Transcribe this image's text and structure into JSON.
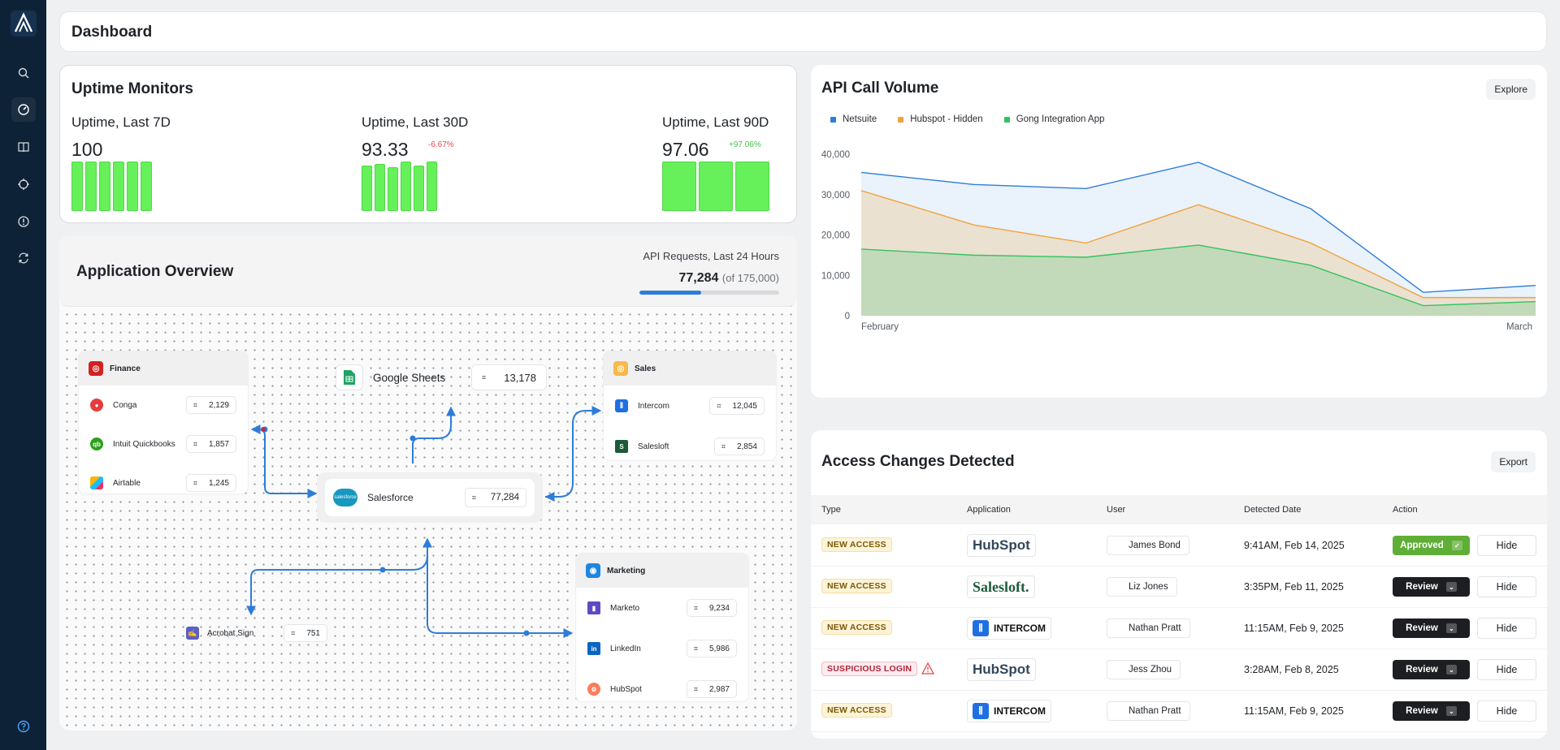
{
  "header": {
    "title": "Dashboard"
  },
  "sidebar": {
    "items": [
      "logo-icon",
      "search-icon",
      "gauge-icon",
      "book-icon",
      "crosshair-icon",
      "alert-icon",
      "sync-icon",
      "help-icon"
    ]
  },
  "uptime": {
    "title": "Uptime Monitors",
    "blocks": [
      {
        "label": "Uptime, Last 7D",
        "value": "100",
        "delta": ""
      },
      {
        "label": "Uptime, Last 30D",
        "value": "93.33",
        "delta": "-6.67%",
        "delta_color": "#e5484d"
      },
      {
        "label": "Uptime, Last 90D",
        "value": "97.06",
        "delta": "+97.06%",
        "delta_color": "#46c24a"
      }
    ]
  },
  "overview": {
    "title": "Application Overview",
    "api_label": "API Requests, Last 24 Hours",
    "api_value": "77,284",
    "api_of": "(of 175,000)",
    "api_progress": 0.4416,
    "finance": {
      "title": "Finance",
      "rows": [
        {
          "name": "Conga",
          "count": "2,129"
        },
        {
          "name": "Intuit Quickbooks",
          "count": "1,857"
        },
        {
          "name": "Airtable",
          "count": "1,245"
        }
      ]
    },
    "google_sheets": {
      "name": "Google Sheets",
      "count": "13,178"
    },
    "sales": {
      "title": "Sales",
      "rows": [
        {
          "name": "Intercom",
          "count": "12,045"
        },
        {
          "name": "Salesloft",
          "count": "2,854"
        }
      ]
    },
    "salesforce": {
      "name": "Salesforce",
      "count": "77,284",
      "logo_text": "salesforce"
    },
    "acrobat": {
      "name": "Acrobat Sign",
      "count": "751"
    },
    "marketing": {
      "title": "Marketing",
      "rows": [
        {
          "name": "Marketo",
          "count": "9,234"
        },
        {
          "name": "LinkedIn",
          "count": "5,986"
        },
        {
          "name": "HubSpot",
          "count": "2,987"
        }
      ]
    }
  },
  "api_volume": {
    "title": "API Call Volume",
    "explore_label": "Explore",
    "legend": [
      {
        "name": "Netsuite",
        "color": "#2d7dd8"
      },
      {
        "name": "Hubspot - Hidden",
        "color": "#f0a33a"
      },
      {
        "name": "Gong Integration App",
        "color": "#34c262"
      }
    ]
  },
  "chart_data": {
    "type": "area",
    "x_labels": [
      "February",
      "March"
    ],
    "y_ticks": [
      "40,000",
      "30,000",
      "20,000",
      "10,000",
      "0"
    ],
    "ylim": [
      0,
      40000
    ],
    "series": [
      {
        "name": "Netsuite",
        "color": "#2d7dd8",
        "values": [
          35500,
          32500,
          31500,
          38000,
          26500,
          5800,
          7500
        ]
      },
      {
        "name": "Hubspot - Hidden",
        "color": "#f0a33a",
        "values": [
          31000,
          22500,
          18000,
          27500,
          18000,
          4500,
          4500
        ]
      },
      {
        "name": "Gong Integration App",
        "color": "#34c262",
        "values": [
          16500,
          15000,
          14500,
          17500,
          12500,
          2500,
          3500
        ]
      }
    ]
  },
  "access": {
    "title": "Access Changes Detected",
    "export_label": "Export",
    "columns": [
      "Type",
      "Application",
      "User",
      "Detected Date",
      "Action"
    ],
    "rows": [
      {
        "type": "NEW ACCESS",
        "app": "HubSpot",
        "user": "James Bond",
        "date": "9:41AM, Feb 14, 2025",
        "action": "Approved",
        "hide": "Hide"
      },
      {
        "type": "NEW ACCESS",
        "app": "Salesloft.",
        "user": "Liz Jones",
        "date": "3:35PM, Feb 11, 2025",
        "action": "Review",
        "hide": "Hide"
      },
      {
        "type": "NEW ACCESS",
        "app": "INTERCOM",
        "user": "Nathan Pratt",
        "date": "11:15AM, Feb 9, 2025",
        "action": "Review",
        "hide": "Hide"
      },
      {
        "type": "SUSPICIOUS LOGIN",
        "app": "HubSpot",
        "user": "Jess Zhou",
        "date": "3:28AM, Feb 8, 2025",
        "action": "Review",
        "hide": "Hide"
      },
      {
        "type": "NEW ACCESS",
        "app": "INTERCOM",
        "user": "Nathan Pratt",
        "date": "11:15AM, Feb 9, 2025",
        "action": "Review",
        "hide": "Hide"
      }
    ]
  }
}
